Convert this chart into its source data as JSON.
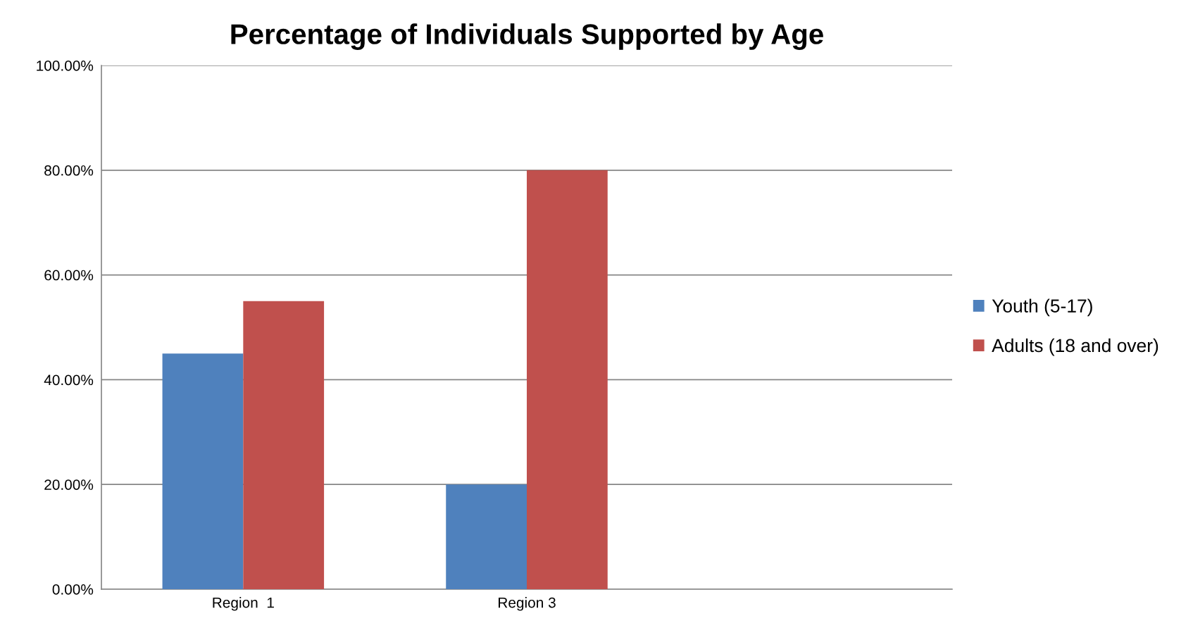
{
  "chart_data": {
    "type": "bar",
    "title": "Percentage of Individuals Supported by Age",
    "categories": [
      "Region  1",
      "Region 3",
      null
    ],
    "series": [
      {
        "name": "Youth (5-17)",
        "color": "#4f81bd",
        "values": [
          45,
          20,
          null
        ]
      },
      {
        "name": "Adults (18 and over)",
        "color": "#c0504d",
        "values": [
          55,
          80,
          null
        ]
      }
    ],
    "ylim": [
      0,
      100
    ],
    "yticks": [
      {
        "value": 0,
        "label": "0.00%"
      },
      {
        "value": 20,
        "label": "20.00%"
      },
      {
        "value": 40,
        "label": "40.00%"
      },
      {
        "value": 60,
        "label": "60.00%"
      },
      {
        "value": 80,
        "label": "80.00%"
      },
      {
        "value": 100,
        "label": "100.00%"
      }
    ],
    "grid": "y",
    "legend": "right"
  }
}
